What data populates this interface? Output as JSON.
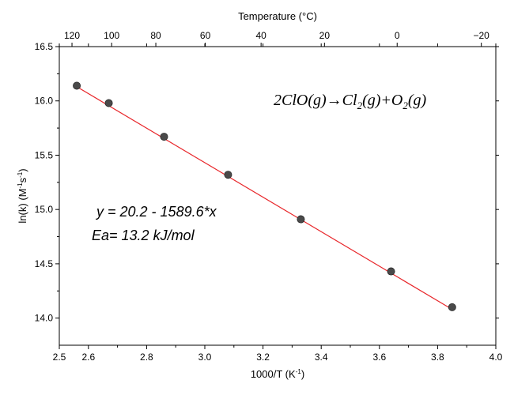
{
  "chart_data": {
    "type": "scatter",
    "title": "",
    "xlabel": {
      "base": "1000/T (K",
      "sup": "-1",
      "close": ")"
    },
    "ylabel": {
      "base": "ln(k) (M",
      "sup1": "-1",
      "mid": "s",
      "sup2": "-1",
      "close": ")"
    },
    "top_axis_label": "Temperature (°C)",
    "xlim": [
      2.5,
      4.0
    ],
    "ylim": [
      13.75,
      16.5
    ],
    "x_ticks": [
      "2.5",
      "2.6",
      "2.8",
      "3.0",
      "3.2",
      "3.4",
      "3.6",
      "3.8",
      "4.0"
    ],
    "y_ticks": [
      "14.0",
      "14.5",
      "15.0",
      "15.5",
      "16.0",
      "16.5"
    ],
    "top_ticks_celsius": [
      "120",
      "100",
      "80",
      "60",
      "40",
      "20",
      "0",
      "−20"
    ],
    "series": [
      {
        "x": [
          2.56,
          2.67,
          2.86,
          3.08,
          3.33,
          3.64,
          3.85
        ],
        "y": [
          16.14,
          15.98,
          15.67,
          15.32,
          14.91,
          14.43,
          14.1
        ]
      }
    ],
    "fit": {
      "intercept": 20.2,
      "slope": -1.5896,
      "x_range": [
        2.56,
        3.85
      ],
      "color": "#e8262a"
    },
    "marker_color": "#4a4a4a",
    "annotations": {
      "equation": "y = 20.2 - 1589.6*x",
      "activation_energy": "Ea= 13.2 kJ/mol",
      "reaction": {
        "part1": "2ClO(g)→Cl",
        "sub1": "2",
        "part2": "(g)+O",
        "sub2": "2",
        "part3": "(g)"
      }
    }
  }
}
